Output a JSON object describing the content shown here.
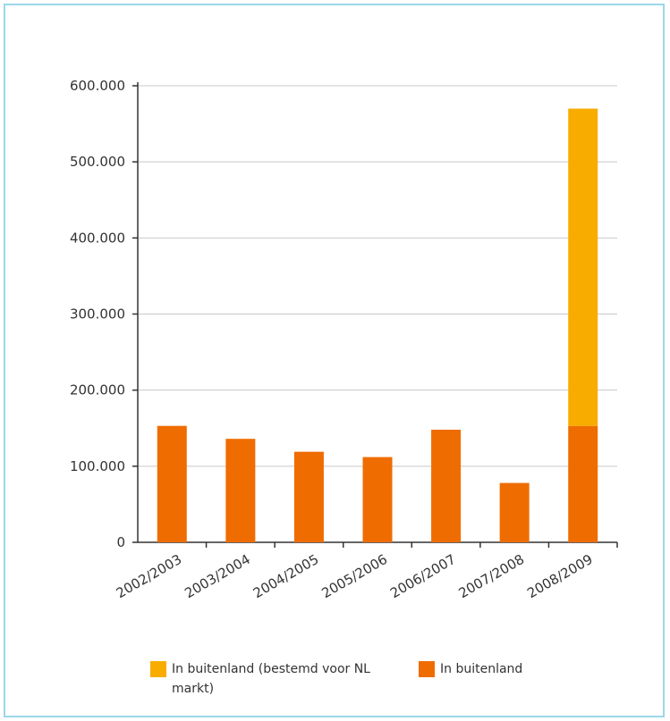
{
  "chart_data": {
    "type": "bar",
    "stacked": true,
    "categories": [
      "2002/2003",
      "2003/2004",
      "2004/2005",
      "2005/2006",
      "2006/2007",
      "2007/2008",
      "2008/2009"
    ],
    "series": [
      {
        "name": "In buitenland",
        "color": "#ef6c00",
        "values": [
          153000,
          136000,
          119000,
          112000,
          148000,
          78000,
          153000
        ]
      },
      {
        "name": "In buitenland (bestemd voor NL markt)",
        "color": "#f9ac00",
        "values": [
          0,
          0,
          0,
          0,
          0,
          0,
          417000
        ]
      }
    ],
    "ylim": [
      0,
      600000
    ],
    "yticks": [
      0,
      100000,
      200000,
      300000,
      400000,
      500000,
      600000
    ],
    "ytick_labels": [
      "0",
      "100.000",
      "200.000",
      "300.000",
      "400.000",
      "500.000",
      "600.000"
    ],
    "grid": true,
    "legend_position": "bottom",
    "title": "",
    "xlabel": "",
    "ylabel": ""
  },
  "legend": {
    "items": [
      {
        "label": "In buitenland (bestemd voor NL markt)",
        "color": "#f9ac00"
      },
      {
        "label": "In buitenland",
        "color": "#ef6c00"
      }
    ]
  }
}
